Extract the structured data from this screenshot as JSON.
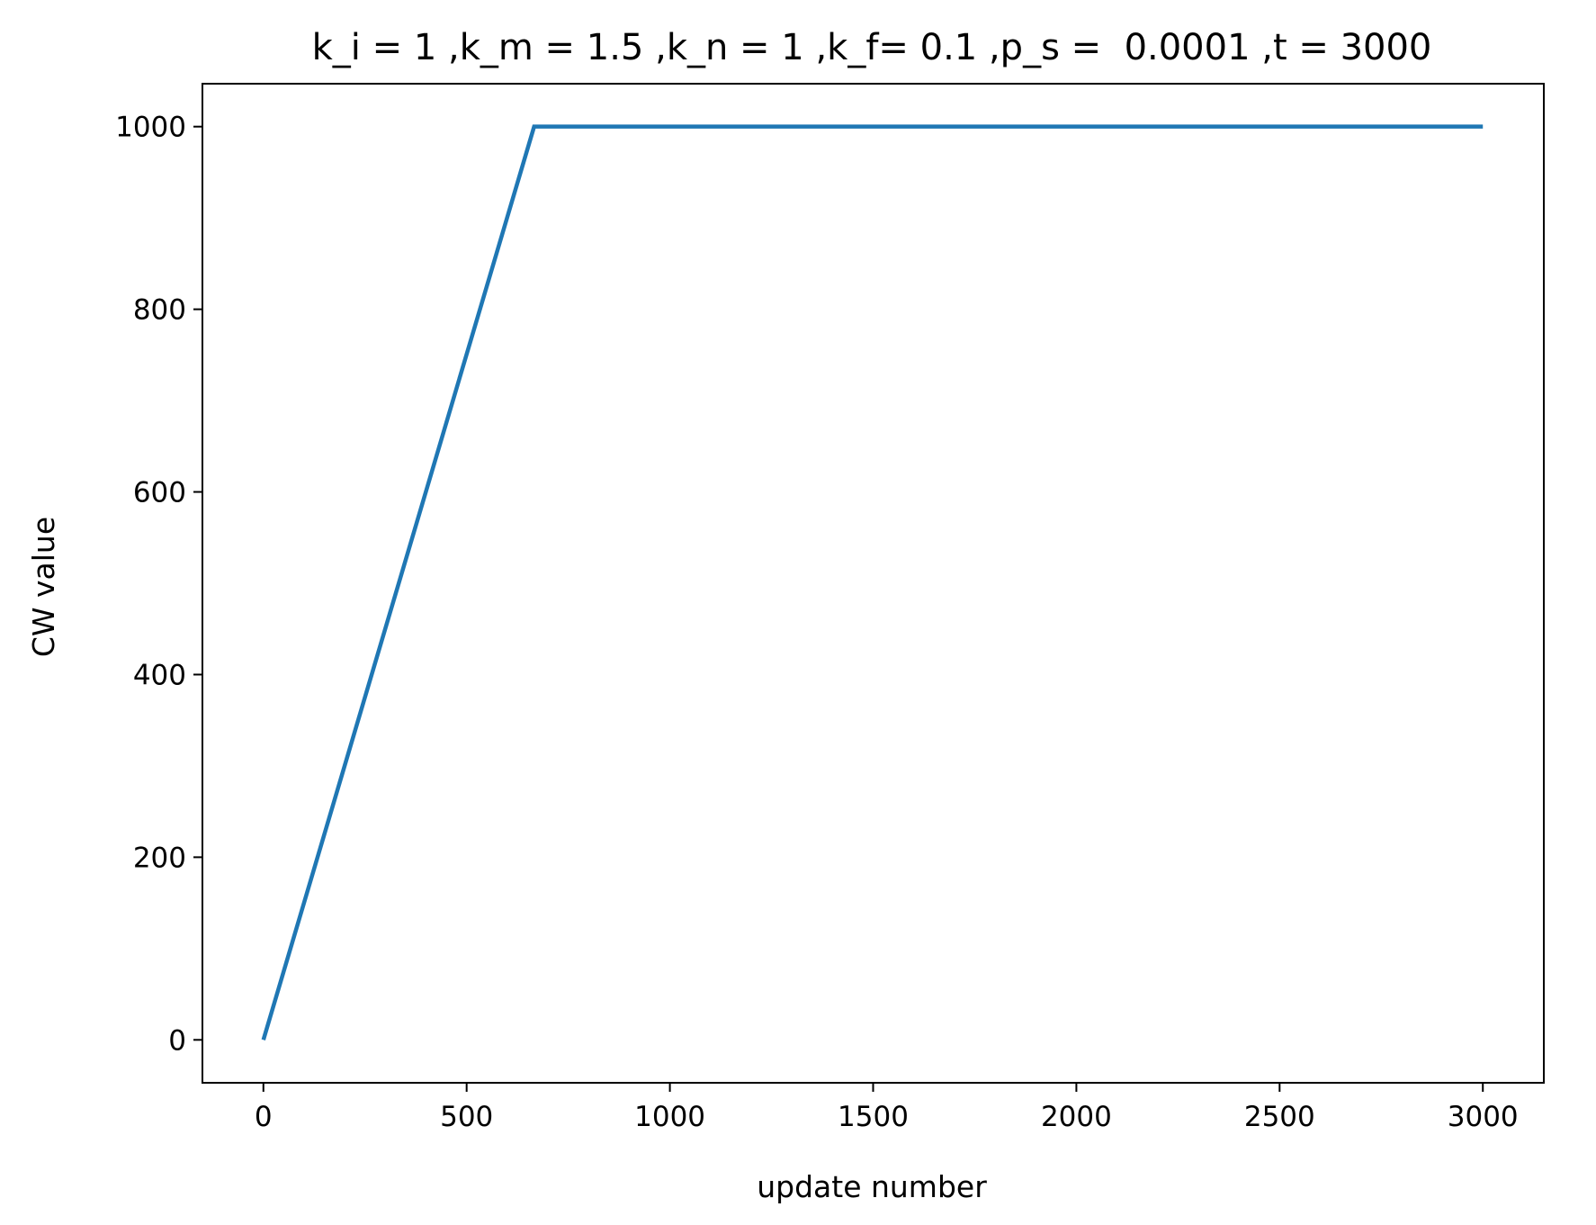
{
  "chart_data": {
    "type": "line",
    "title": "k_i = 1 ,k_m = 1.5 ,k_n = 1 ,k_f= 0.1 ,p_s =  0.0001 ,t = 3000",
    "xlabel": "update number",
    "ylabel": "CW value",
    "xlim": [
      -150,
      3150
    ],
    "ylim": [
      -47,
      1047
    ],
    "xticks": [
      0,
      500,
      1000,
      1500,
      2000,
      2500,
      3000
    ],
    "xtick_labels": [
      "0",
      "500",
      "1000",
      "1500",
      "2000",
      "2500",
      "3000"
    ],
    "yticks": [
      0,
      200,
      400,
      600,
      800,
      1000
    ],
    "ytick_labels": [
      "0",
      "200",
      "400",
      "600",
      "800",
      "1000"
    ],
    "grid": false,
    "legend": "none",
    "series": [
      {
        "color": "#1f77b4",
        "x": [
          0,
          666,
          3000
        ],
        "y": [
          0,
          1000,
          1000
        ]
      }
    ]
  }
}
